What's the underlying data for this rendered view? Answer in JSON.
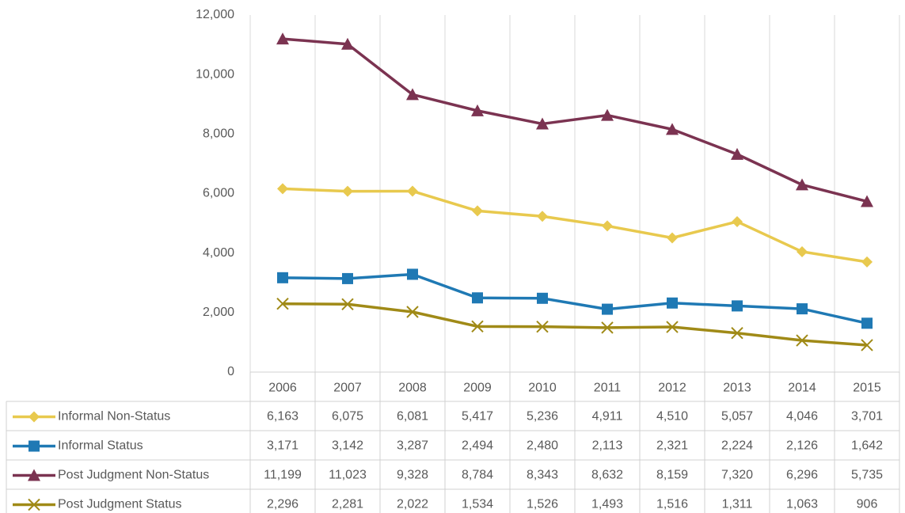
{
  "chart_data": {
    "type": "line",
    "categories": [
      "2006",
      "2007",
      "2008",
      "2009",
      "2010",
      "2011",
      "2012",
      "2013",
      "2014",
      "2015"
    ],
    "series": [
      {
        "name": "Informal Non-Status",
        "color": "#e8c94e",
        "marker": "diamond",
        "values": [
          6163,
          6075,
          6081,
          5417,
          5236,
          4911,
          4510,
          5057,
          4046,
          3701
        ],
        "value_labels": [
          "6,163",
          "6,075",
          "6,081",
          "5,417",
          "5,236",
          "4,911",
          "4,510",
          "5,057",
          "4,046",
          "3,701"
        ]
      },
      {
        "name": "Informal Status",
        "color": "#1f79b4",
        "marker": "square",
        "values": [
          3171,
          3142,
          3287,
          2494,
          2480,
          2113,
          2321,
          2224,
          2126,
          1642
        ],
        "value_labels": [
          "3,171",
          "3,142",
          "3,287",
          "2,494",
          "2,480",
          "2,113",
          "2,321",
          "2,224",
          "2,126",
          "1,642"
        ]
      },
      {
        "name": "Post Judgment Non-Status",
        "color": "#7b3351",
        "marker": "triangle",
        "values": [
          11199,
          11023,
          9328,
          8784,
          8343,
          8632,
          8159,
          7320,
          6296,
          5735
        ],
        "value_labels": [
          "11,199",
          "11,023",
          "9,328",
          "8,784",
          "8,343",
          "8,632",
          "8,159",
          "7,320",
          "6,296",
          "5,735"
        ]
      },
      {
        "name": "Post Judgment Status",
        "color": "#a08a17",
        "marker": "x",
        "values": [
          2296,
          2281,
          2022,
          1534,
          1526,
          1493,
          1516,
          1311,
          1063,
          906
        ],
        "value_labels": [
          "2,296",
          "2,281",
          "2,022",
          "1,534",
          "1,526",
          "1,493",
          "1,516",
          "1,311",
          "1,063",
          "906"
        ]
      }
    ],
    "ylim": [
      0,
      12000
    ],
    "yticks": [
      0,
      {
        "value": 2000,
        "label": "2,000"
      },
      {
        "value": 4000,
        "label": "4,000"
      },
      {
        "value": 6000,
        "label": "6,000"
      },
      {
        "value": 8000,
        "label": "8,000"
      },
      {
        "value": 10000,
        "label": "10,000"
      },
      {
        "value": 12000,
        "label": "12,000"
      }
    ],
    "xgrid": true
  }
}
